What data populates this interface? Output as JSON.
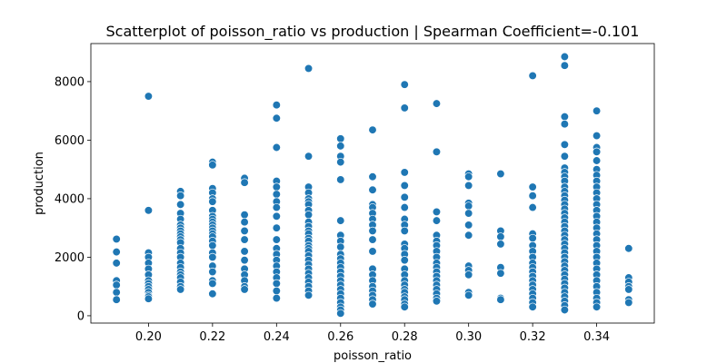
{
  "chart_data": {
    "type": "scatter",
    "title": "Scatterplot of poisson_ratio vs production | Spearman Coefficient=-0.101",
    "xlabel": "poisson_ratio",
    "ylabel": "production",
    "xlim": [
      0.182,
      0.358
    ],
    "ylim": [
      -250,
      9300
    ],
    "xticks": [
      0.2,
      0.22,
      0.24,
      0.26,
      0.28,
      0.3,
      0.32,
      0.34
    ],
    "xtick_labels": [
      "0.20",
      "0.22",
      "0.24",
      "0.26",
      "0.28",
      "0.30",
      "0.32",
      "0.34"
    ],
    "yticks": [
      0,
      2000,
      4000,
      6000,
      8000
    ],
    "ytick_labels": [
      "0",
      "2000",
      "4000",
      "6000",
      "8000"
    ],
    "grid": false,
    "marker_color": "#1f77b4",
    "marker_edge_color": "#ffffff",
    "points_by_x": [
      {
        "x": 0.19,
        "y": [
          2620,
          2180,
          1800,
          1200,
          1050,
          800,
          550
        ]
      },
      {
        "x": 0.2,
        "y": [
          7500,
          3600,
          2150,
          2000,
          1800,
          1600,
          1400,
          1200,
          1100,
          1000,
          900,
          800,
          700,
          650,
          580
        ]
      },
      {
        "x": 0.21,
        "y": [
          4250,
          4100,
          3800,
          3500,
          3300,
          3100,
          3000,
          2900,
          2800,
          2700,
          2600,
          2500,
          2300,
          2150,
          2000,
          1800,
          1650,
          1500,
          1400,
          1300,
          1150,
          1000,
          900
        ]
      },
      {
        "x": 0.22,
        "y": [
          5250,
          5150,
          4350,
          4200,
          4000,
          3900,
          3600,
          3400,
          3300,
          3200,
          3100,
          3000,
          2900,
          2800,
          2700,
          2550,
          2400,
          2150,
          2000,
          1700,
          1500,
          1200,
          1100,
          750
        ]
      },
      {
        "x": 0.23,
        "y": [
          4700,
          4550,
          3450,
          3200,
          2900,
          2600,
          2200,
          1900,
          1600,
          1400,
          1200,
          1000,
          900
        ]
      },
      {
        "x": 0.24,
        "y": [
          7200,
          6750,
          5750,
          4600,
          4400,
          4150,
          3900,
          3700,
          3400,
          3000,
          2600,
          2300,
          2100,
          1900,
          1700,
          1500,
          1300,
          1100,
          850,
          600
        ]
      },
      {
        "x": 0.25,
        "y": [
          8450,
          5450,
          4400,
          4200,
          4000,
          3900,
          3800,
          3600,
          3450,
          3200,
          3050,
          2900,
          2800,
          2650,
          2550,
          2400,
          2300,
          2200,
          2050,
          1900,
          1750,
          1600,
          1450,
          1300,
          1150,
          1000,
          850,
          700
        ]
      },
      {
        "x": 0.26,
        "y": [
          6050,
          5800,
          5450,
          5250,
          4650,
          3250,
          2750,
          2550,
          2350,
          2100,
          1950,
          1800,
          1650,
          1500,
          1350,
          1200,
          1050,
          900,
          750,
          600,
          450,
          300,
          200,
          80
        ]
      },
      {
        "x": 0.27,
        "y": [
          6350,
          4750,
          4300,
          3800,
          3700,
          3500,
          3300,
          3100,
          2900,
          2600,
          2200,
          1600,
          1400,
          1200,
          1000,
          850,
          700,
          550,
          400
        ]
      },
      {
        "x": 0.28,
        "y": [
          7900,
          7100,
          4900,
          4450,
          4050,
          3700,
          3300,
          3100,
          2900,
          2450,
          2300,
          2100,
          1900,
          1600,
          1400,
          1200,
          1050,
          900,
          800,
          650,
          550,
          400,
          300
        ]
      },
      {
        "x": 0.29,
        "y": [
          7250,
          5600,
          3550,
          3250,
          2750,
          2550,
          2400,
          2200,
          2000,
          1800,
          1650,
          1500,
          1350,
          1200,
          1050,
          900,
          750,
          600,
          500
        ]
      },
      {
        "x": 0.3,
        "y": [
          4850,
          4750,
          4450,
          3850,
          3750,
          3500,
          3100,
          2750,
          1700,
          1550,
          1400,
          800,
          700
        ]
      },
      {
        "x": 0.31,
        "y": [
          4850,
          2900,
          2700,
          2450,
          1650,
          1450,
          600,
          550
        ]
      },
      {
        "x": 0.32,
        "y": [
          8200,
          4400,
          4100,
          3700,
          2800,
          2650,
          2400,
          2200,
          2000,
          1800,
          1650,
          1500,
          1350,
          1200,
          1050,
          900,
          750,
          600,
          450,
          300
        ]
      },
      {
        "x": 0.33,
        "y": [
          8850,
          8550,
          6800,
          6550,
          5850,
          5450,
          5050,
          4900,
          4750,
          4600,
          4400,
          4250,
          4100,
          3950,
          3800,
          3650,
          3500,
          3350,
          3200,
          3050,
          2900,
          2750,
          2600,
          2450,
          2300,
          2150,
          2000,
          1850,
          1700,
          1550,
          1400,
          1250,
          1100,
          950,
          800,
          650,
          500,
          350,
          200
        ]
      },
      {
        "x": 0.34,
        "y": [
          7000,
          6150,
          5750,
          5600,
          5300,
          5000,
          4800,
          4600,
          4400,
          4200,
          4000,
          3800,
          3600,
          3400,
          3200,
          3000,
          2800,
          2600,
          2400,
          2200,
          2000,
          1800,
          1600,
          1400,
          1200,
          1000,
          800,
          600,
          450,
          300
        ]
      },
      {
        "x": 0.35,
        "y": [
          2300,
          1300,
          1150,
          1000,
          900,
          550,
          450
        ]
      }
    ]
  }
}
